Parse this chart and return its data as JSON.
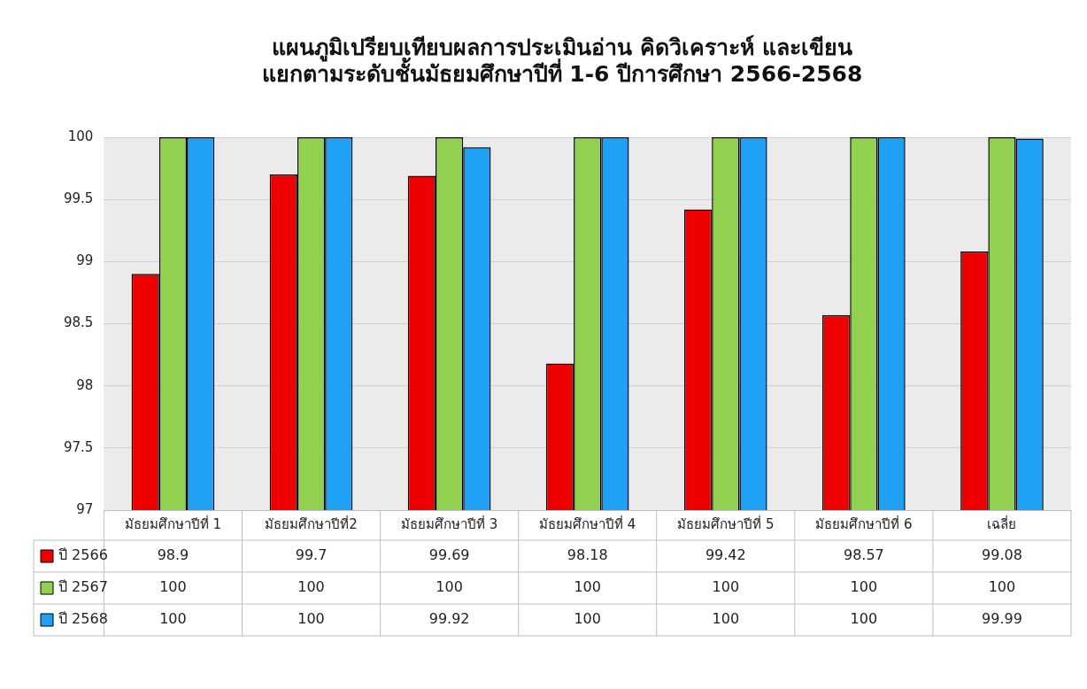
{
  "chart_data": {
    "type": "bar",
    "title": "แผนภูมิเปรียบเทียบผลการประเมินอ่าน คิดวิเคราะห์ และเขียน\nแยกตามระดับชั้นมัธยมศึกษาปีที่ 1-6 ปีการศึกษา 2566-2568",
    "categories": [
      "มัธยมศึกษาปีที่ 1",
      "มัธยมศึกษาปีที่2",
      "มัธยมศึกษาปีที่ 3",
      "มัธยมศึกษาปีที่ 4",
      "มัธยมศึกษาปีที่ 5",
      "มัธยมศึกษาปีที่ 6",
      "เฉลี่ย"
    ],
    "series": [
      {
        "name": "ปี 2566",
        "color": "#ee0000",
        "values": [
          98.9,
          99.7,
          99.69,
          98.18,
          99.42,
          98.57,
          99.08
        ]
      },
      {
        "name": "ปี 2567",
        "color": "#92d050",
        "values": [
          100,
          100,
          100,
          100,
          100,
          100,
          100
        ]
      },
      {
        "name": "ปี 2568",
        "color": "#1ea0f5",
        "values": [
          100,
          100,
          99.92,
          100,
          100,
          100,
          99.99
        ]
      }
    ],
    "ylim": [
      97,
      100
    ],
    "yticks": [
      97,
      97.5,
      98,
      98.5,
      99,
      99.5,
      100
    ],
    "grid": "y",
    "legend": "bottom left",
    "data_labels": true
  }
}
